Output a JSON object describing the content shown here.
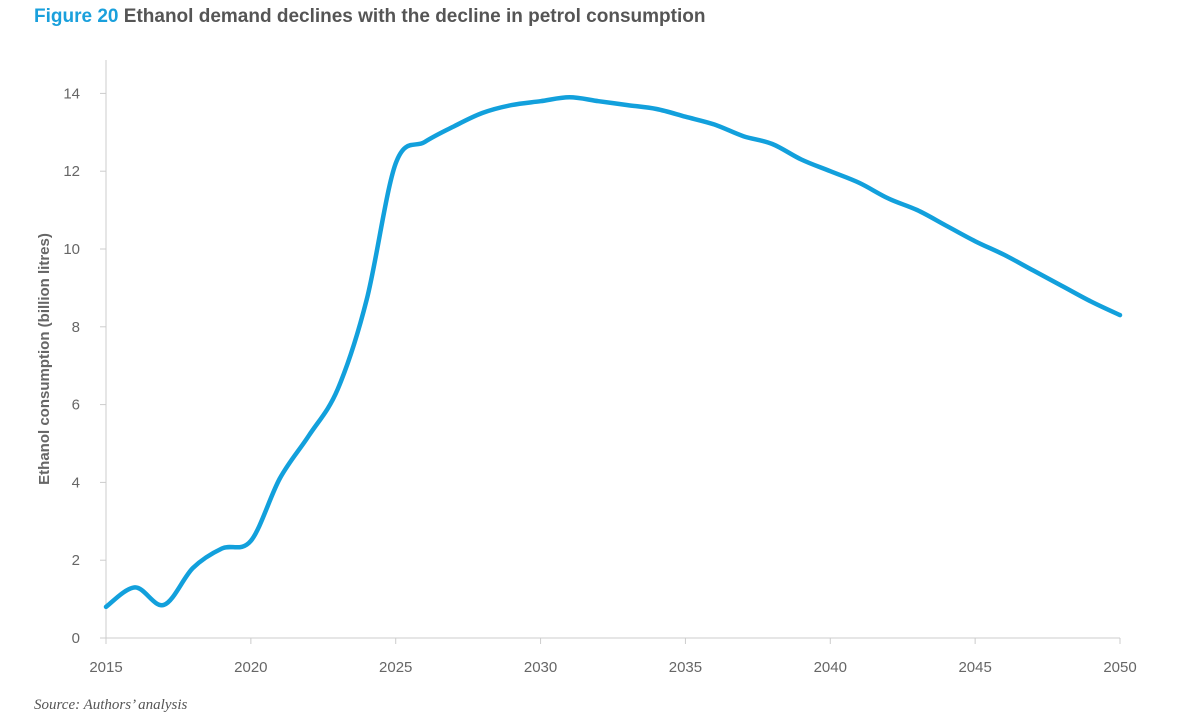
{
  "header": {
    "figure_label": "Figure 20",
    "title_text": "Ethanol demand declines with the decline in petrol consumption"
  },
  "source": "Source: Authors’ analysis",
  "colors": {
    "accent": "#1aa0dc",
    "line": "#12a0dc",
    "text": "#555555",
    "axis": "#cccccc"
  },
  "chart_data": {
    "type": "line",
    "title": "Ethanol demand declines with the decline in petrol consumption",
    "xlabel": "",
    "ylabel": "Ethanol consumption (billion litres)",
    "xlim": [
      2015,
      2050
    ],
    "ylim": [
      0,
      15
    ],
    "xticks": [
      2015,
      2020,
      2025,
      2030,
      2035,
      2040,
      2045,
      2050
    ],
    "yticks": [
      0,
      2,
      4,
      6,
      8,
      10,
      12,
      14
    ],
    "grid": false,
    "legend": "none",
    "series": [
      {
        "x": [
          2015,
          2016,
          2017,
          2018,
          2019,
          2020,
          2021,
          2022,
          2023,
          2024,
          2025,
          2026,
          2027,
          2028,
          2029,
          2030,
          2031,
          2032,
          2033,
          2034,
          2035,
          2036,
          2037,
          2038,
          2039,
          2040,
          2041,
          2042,
          2043,
          2044,
          2045,
          2046,
          2047,
          2048,
          2049,
          2050
        ],
        "values": [
          0.8,
          1.3,
          0.85,
          1.8,
          2.3,
          2.5,
          4.1,
          5.2,
          6.4,
          8.7,
          12.2,
          12.75,
          13.15,
          13.5,
          13.7,
          13.8,
          13.9,
          13.8,
          13.7,
          13.6,
          13.4,
          13.2,
          12.9,
          12.7,
          12.3,
          12.0,
          11.7,
          11.3,
          11.0,
          10.6,
          10.2,
          9.85,
          9.45,
          9.05,
          8.65,
          8.3
        ]
      }
    ]
  }
}
